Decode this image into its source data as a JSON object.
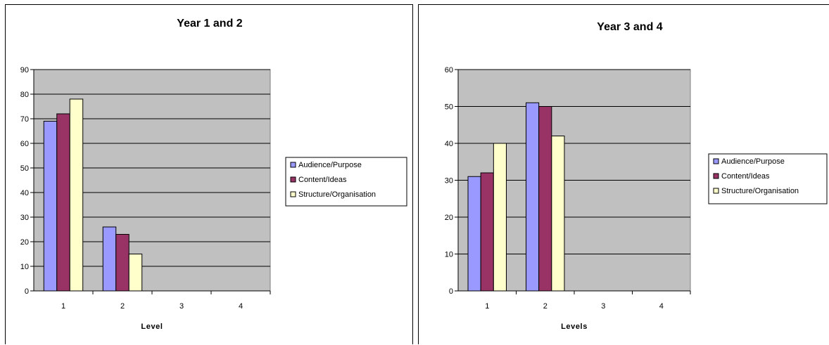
{
  "chart_data": [
    {
      "type": "bar",
      "title": "Year 1 and 2",
      "xlabel": "Level",
      "ylabel": "",
      "categories": [
        "1",
        "2",
        "3",
        "4"
      ],
      "ylim": [
        0,
        90
      ],
      "yticks": [
        0,
        10,
        20,
        30,
        40,
        50,
        60,
        70,
        80,
        90
      ],
      "grid": true,
      "legend": "right",
      "series": [
        {
          "name": "Audience/Purpose",
          "color": "#9999ff",
          "values": [
            69,
            26,
            null,
            null
          ]
        },
        {
          "name": "Content/Ideas",
          "color": "#993366",
          "values": [
            72,
            23,
            null,
            null
          ]
        },
        {
          "name": "Structure/Organisation",
          "color": "#ffffcc",
          "values": [
            78,
            15,
            null,
            null
          ]
        }
      ]
    },
    {
      "type": "bar",
      "title": "Year 3 and 4",
      "xlabel": "Levels",
      "ylabel": "",
      "categories": [
        "1",
        "2",
        "3",
        "4"
      ],
      "ylim": [
        0,
        60
      ],
      "yticks": [
        0,
        10,
        20,
        30,
        40,
        50,
        60
      ],
      "grid": true,
      "legend": "right",
      "series": [
        {
          "name": "Audience/Purpose",
          "color": "#9999ff",
          "values": [
            31,
            51,
            null,
            null
          ]
        },
        {
          "name": "Content/Ideas",
          "color": "#993366",
          "values": [
            32,
            50,
            null,
            null
          ]
        },
        {
          "name": "Structure/Organisation",
          "color": "#ffffcc",
          "values": [
            40,
            42,
            null,
            null
          ]
        }
      ]
    }
  ]
}
